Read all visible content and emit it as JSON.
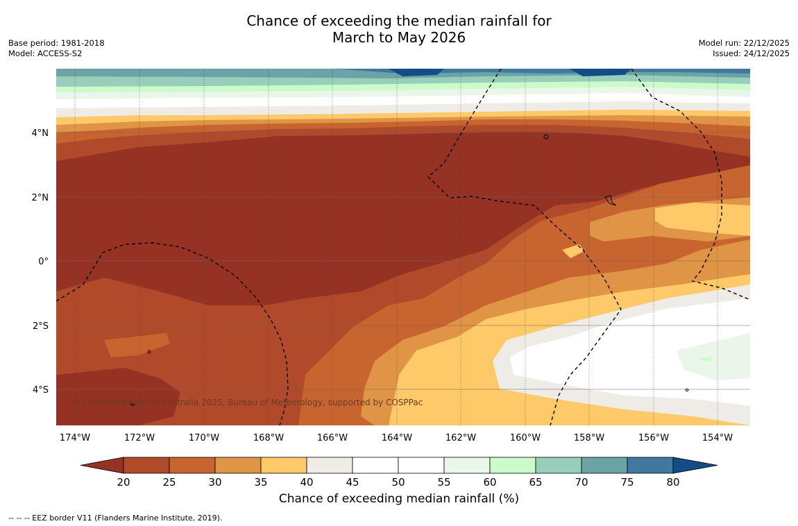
{
  "title_line1": "Chance of exceeding the median rainfall for",
  "title_line2": "March to May 2026",
  "base_period": "Base period: 1981-2018",
  "model": "Model: ACCESS-S2",
  "model_run": "Model run: 22/12/2025",
  "issued": "Issued: 24/12/2025",
  "copyright": "© Commonwealth of Australia 2025, Bureau of Meteorology, supported by COSPPac",
  "lon_ticks": [
    "174°W",
    "172°W",
    "170°W",
    "168°W",
    "166°W",
    "164°W",
    "162°W",
    "160°W",
    "158°W",
    "156°W",
    "154°W"
  ],
  "lat_ticks": [
    "4°N",
    "2°N",
    "0°",
    "2°S",
    "4°S"
  ],
  "colorbar": {
    "label": "Chance of exceeding median rainfall (%)",
    "ticks": [
      "20",
      "25",
      "30",
      "35",
      "40",
      "45",
      "50",
      "55",
      "60",
      "65",
      "70",
      "75",
      "80"
    ],
    "colors": [
      "#953224",
      "#b14a2a",
      "#c8642f",
      "#e09445",
      "#fec969",
      "#efebe6",
      "#ffffff",
      "#ffffff",
      "#eaf6ea",
      "#cbfacb",
      "#98cfba",
      "#6ba3a6",
      "#40789e",
      "#124d86"
    ]
  },
  "footnote": "--  --  -- EEZ border V11 (Flanders Marine Institute, 2019)."
}
